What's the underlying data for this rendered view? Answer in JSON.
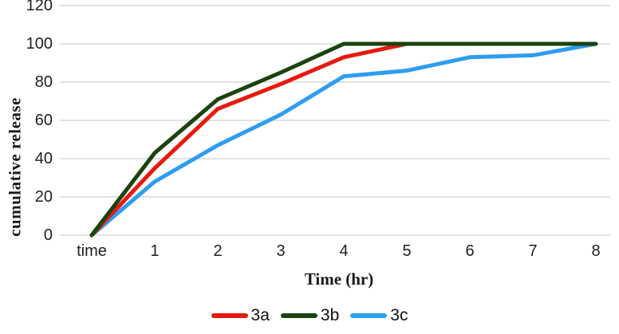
{
  "chart_data": {
    "type": "line",
    "title": "",
    "xlabel": "Time (hr)",
    "ylabel": "cumulative release",
    "x_labels": [
      "time",
      "1",
      "2",
      "3",
      "4",
      "5",
      "6",
      "7",
      "8"
    ],
    "ytick_labels": [
      "0",
      "20",
      "40",
      "60",
      "80",
      "100",
      "120"
    ],
    "yticks": [
      0,
      20,
      40,
      60,
      80,
      100,
      120
    ],
    "ylim": [
      0,
      120
    ],
    "grid": "horizontal-only",
    "gridline_color": "#d7dad8",
    "background_color": "#ffffff",
    "text_color": "#1f1f1f",
    "legend_position": "bottom-center",
    "series": [
      {
        "name": "3a",
        "color": "#e8190e",
        "x": [
          0,
          1,
          2,
          3,
          4,
          5
        ],
        "values": [
          0,
          35,
          66,
          79,
          93,
          100
        ]
      },
      {
        "name": "3b",
        "color": "#1b430f",
        "x": [
          0,
          1,
          2,
          3,
          4,
          5,
          6,
          7,
          8
        ],
        "values": [
          0,
          43,
          71,
          85,
          100,
          100,
          100,
          100,
          100
        ]
      },
      {
        "name": "3c",
        "color": "#2e9df2",
        "x": [
          0,
          1,
          2,
          3,
          4,
          5,
          6,
          7,
          8
        ],
        "values": [
          0,
          28,
          47,
          63,
          83,
          86,
          93,
          94,
          100
        ]
      }
    ]
  }
}
